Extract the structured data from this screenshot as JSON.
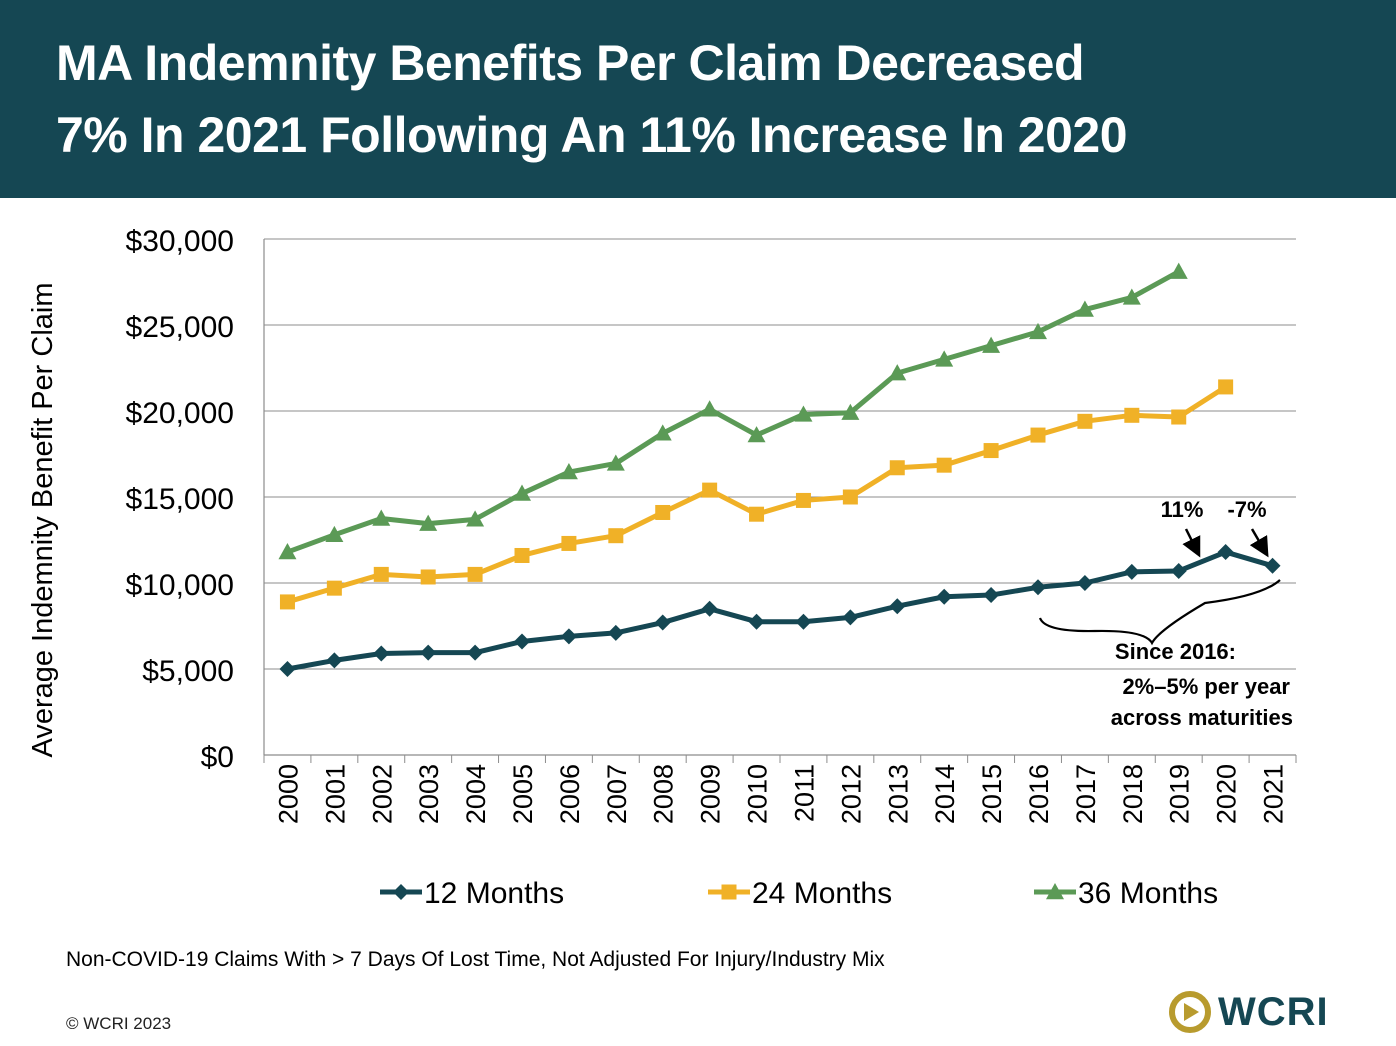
{
  "header": {
    "title_line1": "MA Indemnity Benefits Per Claim Decreased",
    "title_line2": "7% In 2021 Following An 11% Increase In 2020"
  },
  "colors": {
    "header_bg": "#154753",
    "series_12": "#154753",
    "series_24": "#F0B127",
    "series_36": "#5B9A56"
  },
  "chart_data": {
    "type": "line",
    "title": "MA Indemnity Benefits Per Claim Decreased 7% In 2021 Following An 11% Increase In 2020",
    "xlabel": "",
    "ylabel": "Average Indemnity Benefit Per Claim",
    "ylim": [
      0,
      30000
    ],
    "yticks": [
      0,
      5000,
      10000,
      15000,
      20000,
      25000,
      30000
    ],
    "ytick_labels": [
      "$0",
      "$5,000",
      "$10,000",
      "$15,000",
      "$20,000",
      "$25,000",
      "$30,000"
    ],
    "grid": true,
    "legend_position": "bottom",
    "categories": [
      "2000",
      "2001",
      "2002",
      "2003",
      "2004",
      "2005",
      "2006",
      "2007",
      "2008",
      "2009",
      "2010",
      "2011",
      "2012",
      "2013",
      "2014",
      "2015",
      "2016",
      "2017",
      "2018",
      "2019",
      "2020",
      "2021"
    ],
    "series": [
      {
        "name": "12 Months",
        "marker": "diamond",
        "values": [
          5000,
          5500,
          5900,
          5950,
          5950,
          6600,
          6900,
          7100,
          7700,
          8500,
          7750,
          7750,
          8000,
          8650,
          9200,
          9300,
          9750,
          10000,
          10650,
          10700,
          11800,
          11000
        ]
      },
      {
        "name": "24 Months",
        "marker": "square",
        "values": [
          8900,
          9700,
          10500,
          10350,
          10500,
          11600,
          12300,
          12750,
          14100,
          15400,
          14000,
          14800,
          15000,
          16700,
          16850,
          17700,
          18600,
          19400,
          19750,
          19650,
          21400,
          null
        ]
      },
      {
        "name": "36 Months",
        "marker": "triangle",
        "values": [
          11800,
          12800,
          13750,
          13450,
          13700,
          15200,
          16450,
          16950,
          18700,
          20100,
          18600,
          19800,
          19900,
          22200,
          23000,
          23800,
          24600,
          25900,
          26600,
          28100,
          null,
          null
        ]
      }
    ],
    "annotations": {
      "pct_2020": "11%",
      "pct_2021": "-7%",
      "brace_line1": "Since 2016:",
      "brace_line2": "2%–5% per year",
      "brace_line3": "across maturities"
    }
  },
  "footnote": "Non-COVID-19 Claims With > 7 Days Of Lost Time, Not Adjusted For Injury/Industry Mix",
  "copyright": "© WCRI 2023",
  "logo_text": "WCRI"
}
